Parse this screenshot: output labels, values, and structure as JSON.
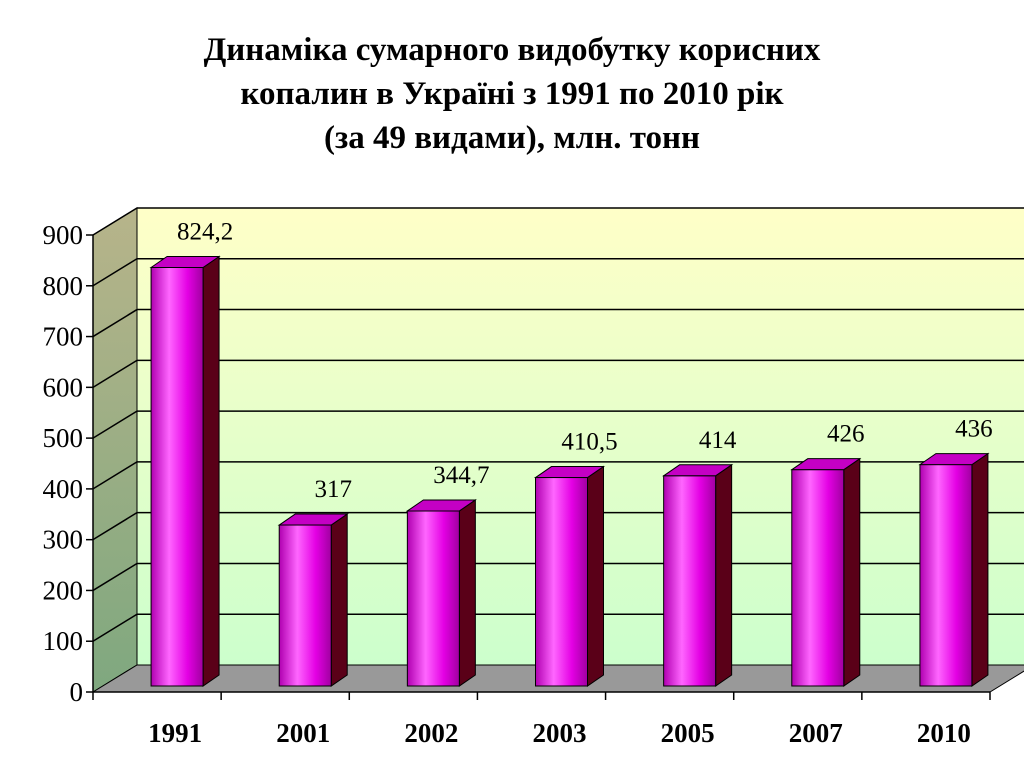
{
  "chart_data": {
    "type": "bar",
    "title_lines": [
      "Динаміка сумарного видобутку корисних",
      "копалин в Україні з 1991 по 2010 рік",
      "(за 49 видами), млн. тонн"
    ],
    "categories": [
      "1991",
      "2001",
      "2002",
      "2003",
      "2005",
      "2007",
      "2010"
    ],
    "values": [
      824.2,
      317,
      344.7,
      410.5,
      414,
      426,
      436
    ],
    "data_labels": [
      "824,2",
      "317",
      "344,7",
      "410,5",
      "414",
      "426",
      "436"
    ],
    "yticks": [
      "0",
      "100",
      "200",
      "300",
      "400",
      "500",
      "600",
      "700",
      "800",
      "900"
    ],
    "ylim": [
      0,
      900
    ],
    "grid": true,
    "legend": "none",
    "style": "3d-column",
    "colors": {
      "bar_front_top": "#ff66ff",
      "bar_front_mid": "#e400e4",
      "bar_side": "#5a0018",
      "bar_top": "#c400c4",
      "wall_top": "#ffffc8",
      "wall_bottom": "#ccffcc",
      "side_wall_top": "#b7b48a",
      "side_wall_bottom": "#7fa87f",
      "floor": "#999999"
    }
  }
}
